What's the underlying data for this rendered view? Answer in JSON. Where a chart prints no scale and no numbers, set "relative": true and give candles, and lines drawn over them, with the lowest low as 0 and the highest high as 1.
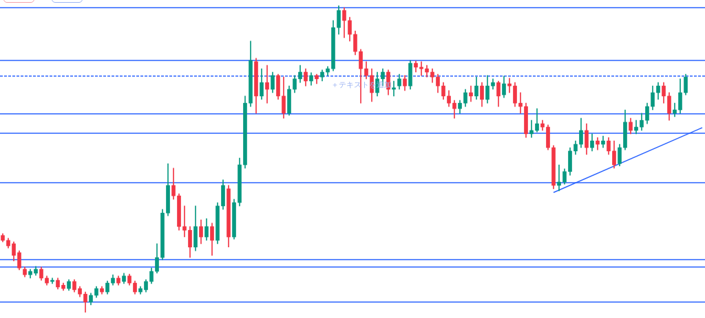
{
  "chart_data": {
    "type": "candlestick",
    "relative": true,
    "categories": [
      null,
      null,
      null,
      null,
      null,
      null,
      null,
      null,
      null,
      null,
      null,
      null,
      null,
      null,
      null,
      null,
      null,
      null,
      null,
      null,
      null,
      null,
      null,
      null,
      null,
      null,
      null,
      null,
      null,
      null,
      null,
      null,
      null,
      null,
      null,
      null,
      null,
      null,
      null,
      null,
      null,
      null,
      null,
      null,
      null,
      null,
      null,
      null,
      null,
      null,
      null,
      null,
      null,
      null,
      null,
      null,
      null,
      null,
      null,
      null,
      null,
      null,
      null,
      null,
      null,
      null,
      null,
      null,
      null,
      null,
      null,
      null,
      null,
      null,
      null,
      null,
      null,
      null,
      null,
      null,
      null,
      null,
      null,
      null,
      null,
      null,
      null,
      null,
      null,
      null,
      null,
      null,
      null,
      null,
      null,
      null,
      null,
      null,
      null,
      null,
      null,
      null,
      null,
      null,
      null,
      null,
      null,
      null,
      null,
      null,
      null,
      null,
      null,
      null,
      null,
      null,
      null,
      null,
      null,
      null,
      null,
      null,
      null,
      null,
      null,
      null,
      null,
      null
    ],
    "ohlc": [
      [
        0.251,
        0.257,
        0.23,
        0.235
      ],
      [
        0.235,
        0.242,
        0.21,
        0.217
      ],
      [
        0.224,
        0.23,
        0.168,
        0.186
      ],
      [
        0.195,
        0.201,
        0.139,
        0.145
      ],
      [
        0.141,
        0.148,
        0.116,
        0.123
      ],
      [
        0.123,
        0.141,
        0.112,
        0.134
      ],
      [
        0.128,
        0.15,
        0.121,
        0.141
      ],
      [
        0.141,
        0.148,
        0.105,
        0.112
      ],
      [
        0.112,
        0.119,
        0.089,
        0.096
      ],
      [
        0.101,
        0.112,
        0.094,
        0.105
      ],
      [
        0.105,
        0.112,
        0.076,
        0.083
      ],
      [
        0.089,
        0.096,
        0.072,
        0.078
      ],
      [
        0.078,
        0.107,
        0.072,
        0.101
      ],
      [
        0.101,
        0.107,
        0.067,
        0.074
      ],
      [
        0.078,
        0.085,
        0.051,
        0.06
      ],
      [
        0.06,
        0.067,
        0,
        0.034
      ],
      [
        0.034,
        0.063,
        0.025,
        0.056
      ],
      [
        0.056,
        0.085,
        0.049,
        0.078
      ],
      [
        0.078,
        0.085,
        0.06,
        0.067
      ],
      [
        0.067,
        0.103,
        0.06,
        0.096
      ],
      [
        0.096,
        0.123,
        0.089,
        0.112
      ],
      [
        0.112,
        0.119,
        0.089,
        0.096
      ],
      [
        0.101,
        0.128,
        0.094,
        0.119
      ],
      [
        0.119,
        0.125,
        0.089,
        0.096
      ],
      [
        0.096,
        0.103,
        0.06,
        0.067
      ],
      [
        0.067,
        0.085,
        0.06,
        0.078
      ],
      [
        0.074,
        0.107,
        0.067,
        0.101
      ],
      [
        0.101,
        0.145,
        0.094,
        0.134
      ],
      [
        0.134,
        0.224,
        0.128,
        0.179
      ],
      [
        0.179,
        0.336,
        0.172,
        0.324
      ],
      [
        0.324,
        0.485,
        0.315,
        0.414
      ],
      [
        0.414,
        0.47,
        0.369,
        0.38
      ],
      [
        0.38,
        0.387,
        0.268,
        0.28
      ],
      [
        0.28,
        0.347,
        0.246,
        0.268
      ],
      [
        0.268,
        0.28,
        0.179,
        0.213
      ],
      [
        0.213,
        0.347,
        0.201,
        0.28
      ],
      [
        0.28,
        0.302,
        0.224,
        0.246
      ],
      [
        0.246,
        0.306,
        0.235,
        0.28
      ],
      [
        0.28,
        0.291,
        0.186,
        0.235
      ],
      [
        0.235,
        0.358,
        0.224,
        0.347
      ],
      [
        0.347,
        0.432,
        0.336,
        0.414
      ],
      [
        0.403,
        0.414,
        0.213,
        0.246
      ],
      [
        0.246,
        0.369,
        0.239,
        0.358
      ],
      [
        0.358,
        0.503,
        0.347,
        0.481
      ],
      [
        0.481,
        0.705,
        0.47,
        0.682
      ],
      [
        0.682,
        0.884,
        0.671,
        0.821
      ],
      [
        0.817,
        0.828,
        0.649,
        0.705
      ],
      [
        0.705,
        0.794,
        0.694,
        0.749
      ],
      [
        0.749,
        0.805,
        0.682,
        0.727
      ],
      [
        0.727,
        0.783,
        0.716,
        0.772
      ],
      [
        0.772,
        0.776,
        0.694,
        0.705
      ],
      [
        0.705,
        0.767,
        0.633,
        0.649
      ],
      [
        0.649,
        0.738,
        0.642,
        0.727
      ],
      [
        0.727,
        0.772,
        0.716,
        0.761
      ],
      [
        0.761,
        0.805,
        0.749,
        0.783
      ],
      [
        0.783,
        0.794,
        0.738,
        0.754
      ],
      [
        0.754,
        0.781,
        0.74,
        0.772
      ],
      [
        0.772,
        0.776,
        0.745,
        0.761
      ],
      [
        0.767,
        0.79,
        0.754,
        0.783
      ],
      [
        0.783,
        0.801,
        0.772,
        0.794
      ],
      [
        0.794,
        0.951,
        0.787,
        0.928
      ],
      [
        0.928,
        1,
        0.906,
        0.984
      ],
      [
        0.984,
        0.993,
        0.895,
        0.951
      ],
      [
        0.951,
        0.962,
        0.884,
        0.906
      ],
      [
        0.906,
        0.917,
        0.839,
        0.85
      ],
      [
        0.85,
        0.857,
        0.682,
        0.794
      ],
      [
        0.794,
        0.817,
        0.761,
        0.772
      ],
      [
        0.772,
        0.794,
        0.687,
        0.716
      ],
      [
        0.716,
        0.783,
        0.705,
        0.761
      ],
      [
        0.761,
        0.794,
        0.738,
        0.783
      ],
      [
        0.783,
        0.79,
        0.709,
        0.727
      ],
      [
        0.727,
        0.754,
        0.705,
        0.732
      ],
      [
        0.738,
        0.776,
        0.727,
        0.761
      ],
      [
        0.761,
        0.772,
        0.723,
        0.738
      ],
      [
        0.738,
        0.821,
        0.727,
        0.812
      ],
      [
        0.812,
        0.819,
        0.783,
        0.799
      ],
      [
        0.799,
        0.817,
        0.772,
        0.794
      ],
      [
        0.794,
        0.805,
        0.767,
        0.783
      ],
      [
        0.783,
        0.794,
        0.749,
        0.767
      ],
      [
        0.767,
        0.776,
        0.716,
        0.738
      ],
      [
        0.738,
        0.749,
        0.694,
        0.705
      ],
      [
        0.705,
        0.723,
        0.671,
        0.682
      ],
      [
        0.682,
        0.691,
        0.633,
        0.664
      ],
      [
        0.664,
        0.691,
        0.649,
        0.682
      ],
      [
        0.682,
        0.727,
        0.671,
        0.716
      ],
      [
        0.716,
        0.738,
        0.687,
        0.705
      ],
      [
        0.705,
        0.767,
        0.694,
        0.738
      ],
      [
        0.738,
        0.749,
        0.671,
        0.694
      ],
      [
        0.694,
        0.772,
        0.682,
        0.738
      ],
      [
        0.738,
        0.761,
        0.727,
        0.749
      ],
      [
        0.749,
        0.754,
        0.671,
        0.705
      ],
      [
        0.709,
        0.77,
        0.7,
        0.745
      ],
      [
        0.745,
        0.763,
        0.716,
        0.738
      ],
      [
        0.738,
        0.749,
        0.671,
        0.682
      ],
      [
        0.682,
        0.716,
        0.649,
        0.671
      ],
      [
        0.671,
        0.682,
        0.57,
        0.582
      ],
      [
        0.582,
        0.626,
        0.57,
        0.593
      ],
      [
        0.593,
        0.664,
        0.588,
        0.615
      ],
      [
        0.615,
        0.626,
        0.593,
        0.604
      ],
      [
        0.604,
        0.611,
        0.53,
        0.537
      ],
      [
        0.537,
        0.544,
        0.403,
        0.414
      ],
      [
        0.414,
        0.481,
        0.396,
        0.425
      ],
      [
        0.425,
        0.468,
        0.418,
        0.459
      ],
      [
        0.459,
        0.537,
        0.447,
        0.526
      ],
      [
        0.526,
        0.559,
        0.515,
        0.548
      ],
      [
        0.548,
        0.633,
        0.537,
        0.593
      ],
      [
        0.593,
        0.615,
        0.515,
        0.537
      ],
      [
        0.537,
        0.582,
        0.526,
        0.559
      ],
      [
        0.559,
        0.57,
        0.53,
        0.548
      ],
      [
        0.548,
        0.575,
        0.537,
        0.559
      ],
      [
        0.559,
        0.57,
        0.515,
        0.526
      ],
      [
        0.526,
        0.559,
        0.47,
        0.481
      ],
      [
        0.485,
        0.548,
        0.477,
        0.537
      ],
      [
        0.537,
        0.66,
        0.53,
        0.62
      ],
      [
        0.62,
        0.633,
        0.582,
        0.593
      ],
      [
        0.593,
        0.626,
        0.582,
        0.604
      ],
      [
        0.604,
        0.649,
        0.593,
        0.626
      ],
      [
        0.626,
        0.682,
        0.615,
        0.671
      ],
      [
        0.671,
        0.738,
        0.66,
        0.716
      ],
      [
        0.716,
        0.749,
        0.694,
        0.738
      ],
      [
        0.738,
        0.749,
        0.682,
        0.705
      ],
      [
        0.705,
        0.716,
        0.626,
        0.649
      ],
      [
        0.649,
        0.682,
        0.638,
        0.66
      ],
      [
        0.66,
        0.761,
        0.649,
        0.716
      ],
      [
        0.716,
        0.776,
        0.709,
        0.767
      ],
      null,
      null,
      null
    ],
    "series": [
      {
        "type": "line",
        "color": "#2962ff",
        "values": [
          null,
          null,
          null,
          null,
          null,
          null,
          null,
          null,
          null,
          null,
          null,
          null,
          null,
          null,
          null,
          null,
          null,
          null,
          null,
          null,
          null,
          null,
          null,
          null,
          null,
          null,
          null,
          null,
          null,
          null,
          null,
          null,
          null,
          null,
          null,
          null,
          null,
          null,
          null,
          null,
          null,
          null,
          null,
          null,
          null,
          null,
          null,
          null,
          null,
          null,
          null,
          null,
          null,
          null,
          null,
          null,
          null,
          null,
          null,
          null,
          null,
          null,
          null,
          null,
          null,
          null,
          null,
          null,
          null,
          null,
          null,
          null,
          null,
          null,
          null,
          null,
          null,
          null,
          null,
          null,
          null,
          null,
          null,
          null,
          null,
          null,
          null,
          null,
          null,
          null,
          null,
          null,
          null,
          null,
          null,
          null,
          null,
          null,
          null,
          null,
          0.391,
          null,
          null,
          null,
          null,
          null,
          null,
          null,
          null,
          null,
          null,
          null,
          null,
          null,
          null,
          null,
          null,
          null,
          null,
          null,
          null,
          null,
          null,
          null,
          null,
          null,
          null,
          0.602
        ]
      }
    ],
    "ref_lines": [
      {
        "axis": "y",
        "value": 0.993,
        "color": "#2962ff"
      },
      {
        "axis": "y",
        "value": 0.821,
        "color": "#2962ff"
      },
      {
        "axis": "y",
        "value": 0.77,
        "color": "#2962ff",
        "line_style": "dashed"
      },
      {
        "axis": "y",
        "value": 0.647,
        "color": "#2962ff"
      },
      {
        "axis": "y",
        "value": 0.584,
        "color": "#2962ff"
      },
      {
        "axis": "y",
        "value": 0.423,
        "color": "#2962ff"
      },
      {
        "axis": "y",
        "value": 0.172,
        "color": "#2962ff"
      },
      {
        "axis": "y",
        "value": 0.148,
        "color": "#2962ff"
      },
      {
        "axis": "y",
        "value": 0.034,
        "color": "#2962ff"
      }
    ],
    "annotations": [
      "＋テキストを追加"
    ],
    "legend": false
  }
}
